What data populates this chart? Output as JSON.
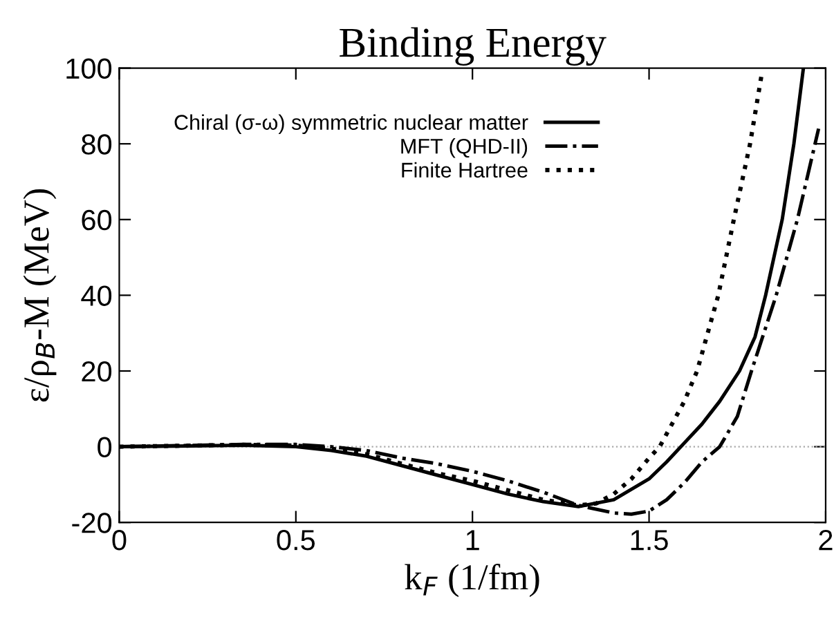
{
  "chart_data": {
    "type": "line",
    "title": "Binding Energy",
    "xlabel": "k$_{F}$ (1/fm)",
    "ylabel": "ε/ρ$_{B}$-M (MeV)",
    "xlim": [
      0,
      2
    ],
    "ylim": [
      -20,
      100
    ],
    "xticks": [
      0,
      0.5,
      1,
      1.5,
      2
    ],
    "yticks": [
      -20,
      0,
      20,
      40,
      60,
      80,
      100
    ],
    "grid": false,
    "legend": "top left",
    "marker": "none",
    "ref_lines": [
      {
        "axis": "y",
        "value": 0,
        "color": "#aaaaaa",
        "line_style": "dotted"
      }
    ],
    "series": [
      {
        "name": "Chiral (σ-ω) symmetric nuclear matter",
        "color": "#000000",
        "line_style": "solid",
        "x": [
          0,
          0.2,
          0.35,
          0.5,
          0.6,
          0.7,
          0.8,
          0.9,
          1.0,
          1.1,
          1.2,
          1.3,
          1.4,
          1.5,
          1.55,
          1.6,
          1.65,
          1.7,
          1.756,
          1.8,
          1.83,
          1.877,
          1.91,
          1.937
        ],
        "values": [
          0,
          0.2,
          0.4,
          0,
          -1,
          -2.5,
          -5,
          -7.5,
          -10,
          -12.5,
          -14.5,
          -15.8,
          -14,
          -8.5,
          -4,
          1,
          6,
          12,
          20,
          29,
          40,
          60,
          80,
          100
        ]
      },
      {
        "name": "MFT (QHD-II)",
        "color": "#000000",
        "line_style": "dashdot",
        "x": [
          0,
          0.35,
          0.5,
          0.6,
          0.7,
          0.8,
          0.9,
          1.0,
          1.1,
          1.2,
          1.3,
          1.4,
          1.45,
          1.5,
          1.55,
          1.6,
          1.65,
          1.7,
          1.75,
          1.79,
          1.86,
          1.92,
          1.98
        ],
        "values": [
          0,
          0.6,
          0.6,
          0,
          -1,
          -3,
          -4.5,
          -6.5,
          -9,
          -12,
          -15.5,
          -17.5,
          -17.8,
          -17,
          -14,
          -9.5,
          -4,
          0,
          8,
          20,
          40,
          60,
          84
        ]
      },
      {
        "name": "Finite Hartree",
        "color": "#000000",
        "line_style": "dotted",
        "x": [
          0,
          0.35,
          0.5,
          0.6,
          0.7,
          0.8,
          0.9,
          1.0,
          1.1,
          1.2,
          1.3,
          1.35,
          1.4,
          1.45,
          1.5,
          1.53,
          1.6,
          1.636,
          1.696,
          1.74,
          1.786,
          1.82
        ],
        "values": [
          0,
          0.5,
          0.3,
          -0.5,
          -2,
          -4.5,
          -7,
          -9,
          -11.5,
          -14,
          -15.5,
          -15,
          -12.5,
          -8.5,
          -3,
          0,
          12,
          20,
          40,
          60,
          80,
          99
        ]
      }
    ]
  }
}
